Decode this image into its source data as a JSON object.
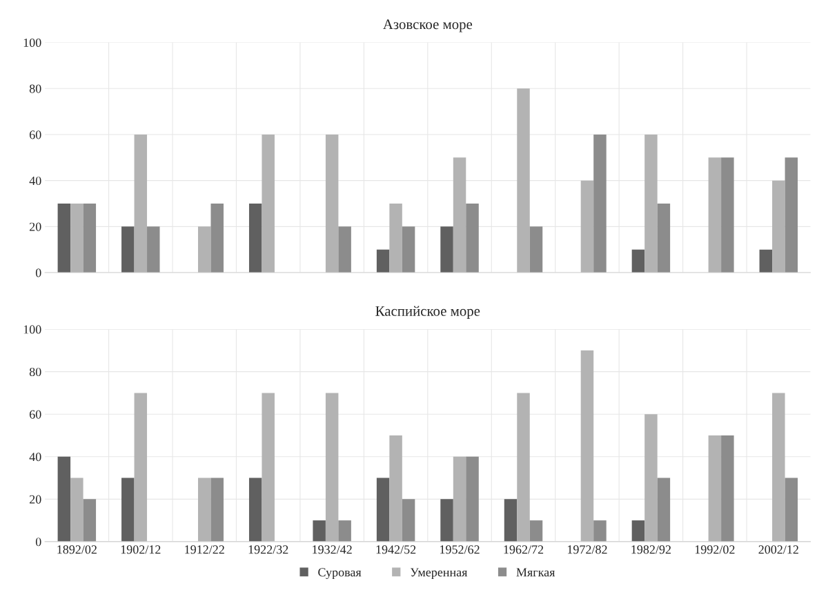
{
  "chart_data": [
    {
      "type": "bar",
      "title": "Азовское море",
      "categories": [
        "1892/02",
        "1902/12",
        "1912/22",
        "1922/32",
        "1932/42",
        "1942/52",
        "1952/62",
        "1962/72",
        "1972/82",
        "1982/92",
        "1992/02",
        "2002/12"
      ],
      "series": [
        {
          "name": "Суровая",
          "color": "#606060",
          "values": [
            30,
            20,
            null,
            30,
            null,
            10,
            20,
            null,
            null,
            10,
            null,
            10
          ]
        },
        {
          "name": "Умеренная",
          "color": "#b3b3b3",
          "values": [
            30,
            60,
            20,
            60,
            60,
            30,
            50,
            80,
            40,
            60,
            50,
            40
          ]
        },
        {
          "name": "Мягкая",
          "color": "#8c8c8c",
          "values": [
            30,
            20,
            30,
            null,
            20,
            20,
            30,
            20,
            60,
            30,
            50,
            50
          ]
        }
      ],
      "ylim": [
        0,
        100
      ],
      "yticks": [
        0,
        20,
        40,
        60,
        80,
        100
      ],
      "grid": true,
      "legend": "bottom",
      "tick_labels": "y"
    },
    {
      "type": "bar",
      "title": "Каспийское море",
      "categories": [
        "1892/02",
        "1902/12",
        "1912/22",
        "1922/32",
        "1932/42",
        "1942/52",
        "1952/62",
        "1962/72",
        "1972/82",
        "1982/92",
        "1992/02",
        "2002/12"
      ],
      "series": [
        {
          "name": "Суровая",
          "color": "#606060",
          "values": [
            40,
            30,
            null,
            30,
            10,
            30,
            20,
            20,
            null,
            10,
            null,
            null
          ]
        },
        {
          "name": "Умеренная",
          "color": "#b3b3b3",
          "values": [
            30,
            70,
            30,
            70,
            70,
            50,
            40,
            70,
            90,
            60,
            50,
            70
          ]
        },
        {
          "name": "Мягкая",
          "color": "#8c8c8c",
          "values": [
            20,
            null,
            30,
            null,
            10,
            20,
            40,
            10,
            10,
            30,
            50,
            30
          ]
        }
      ],
      "ylim": [
        0,
        100
      ],
      "yticks": [
        0,
        20,
        40,
        60,
        80,
        100
      ],
      "grid": true,
      "legend": "bottom"
    }
  ]
}
